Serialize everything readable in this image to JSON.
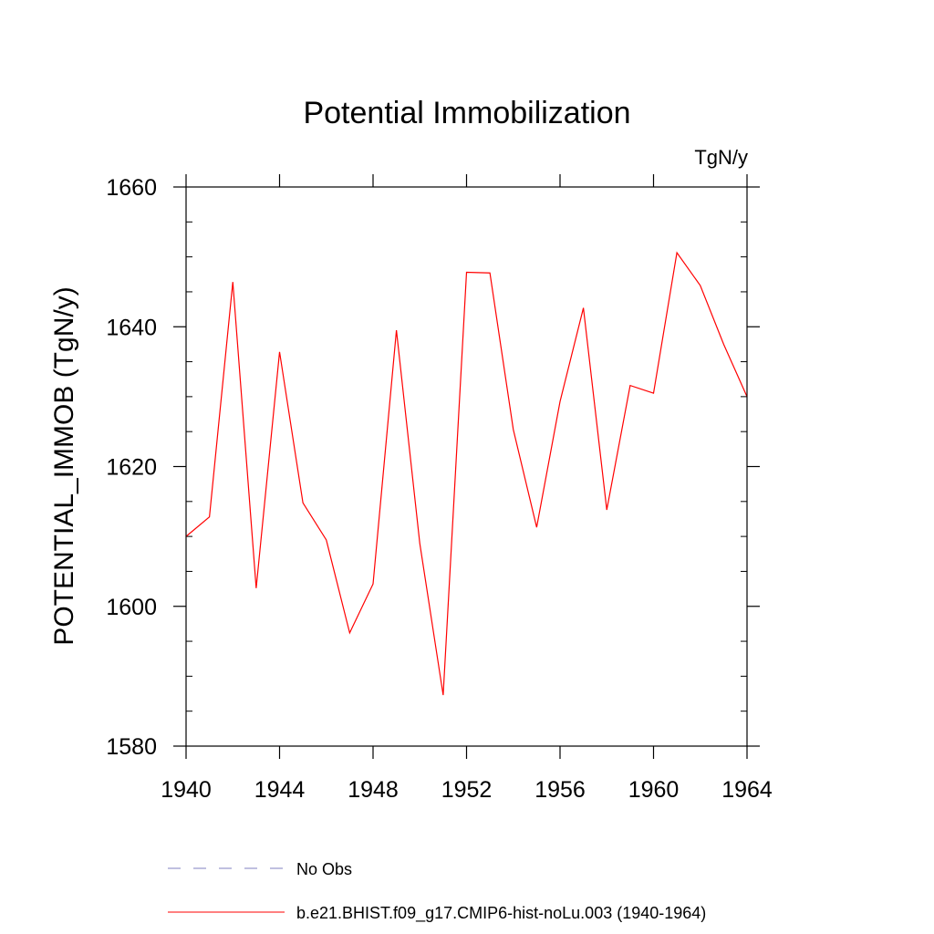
{
  "chart_data": {
    "type": "line",
    "title": "Potential Immobilization",
    "units_label": "TgN/y",
    "ylabel": "POTENTIAL_IMMOB  (TgN/y)",
    "xlabel": "",
    "xlim": [
      1940,
      1964
    ],
    "ylim": [
      1580,
      1660
    ],
    "x_ticks": [
      1940,
      1944,
      1948,
      1952,
      1956,
      1960,
      1964
    ],
    "x_tick_labels": [
      "1940",
      "1944",
      "1948",
      "1952",
      "1956",
      "1960",
      "1964"
    ],
    "y_ticks": [
      1580,
      1600,
      1620,
      1640,
      1660
    ],
    "y_tick_labels": [
      "1580",
      "1600",
      "1620",
      "1640",
      "1660"
    ],
    "y_minor_step": 5,
    "grid": false,
    "legend_position": "bottom",
    "series": [
      {
        "name": "No Obs",
        "color": "#8080c0",
        "dash": "dashed",
        "x": [],
        "y": []
      },
      {
        "name": "b.e21.BHIST.f09_g17.CMIP6-hist-noLu.003 (1940-1964)",
        "color": "#ff0000",
        "dash": "solid",
        "x": [
          1940,
          1941,
          1942,
          1943,
          1944,
          1945,
          1946,
          1947,
          1948,
          1949,
          1950,
          1951,
          1952,
          1953,
          1954,
          1955,
          1956,
          1957,
          1958,
          1959,
          1960,
          1961,
          1962,
          1963,
          1964
        ],
        "y": [
          1610.0,
          1612.8,
          1646.4,
          1602.6,
          1636.4,
          1614.8,
          1609.5,
          1596.2,
          1603.2,
          1639.5,
          1609.0,
          1587.3,
          1647.8,
          1647.7,
          1625.3,
          1611.3,
          1629.3,
          1642.7,
          1613.8,
          1631.6,
          1630.5,
          1650.6,
          1645.9,
          1637.5,
          1630.0
        ]
      }
    ]
  }
}
